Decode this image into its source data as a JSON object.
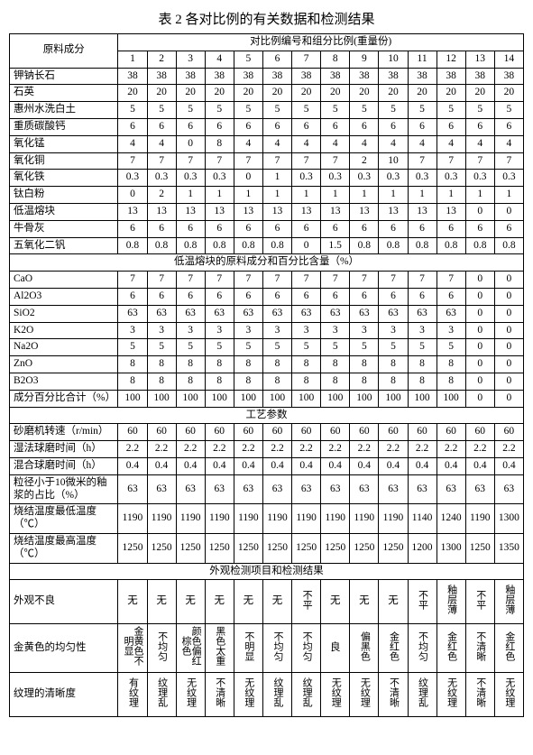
{
  "title": "表 2  各对比例的有关数据和检测结果",
  "header": {
    "rowhead": "原料成分",
    "colgroup": "对比例编号和组分比例(重量份)",
    "cols": [
      "1",
      "2",
      "3",
      "4",
      "5",
      "6",
      "7",
      "8",
      "9",
      "10",
      "11",
      "12",
      "13",
      "14"
    ]
  },
  "sections": {
    "s1_rows": [
      {
        "label": "钾钠长石",
        "v": [
          "38",
          "38",
          "38",
          "38",
          "38",
          "38",
          "38",
          "38",
          "38",
          "38",
          "38",
          "38",
          "38",
          "38"
        ]
      },
      {
        "label": "石英",
        "v": [
          "20",
          "20",
          "20",
          "20",
          "20",
          "20",
          "20",
          "20",
          "20",
          "20",
          "20",
          "20",
          "20",
          "20"
        ]
      },
      {
        "label": "惠州水洗白土",
        "v": [
          "5",
          "5",
          "5",
          "5",
          "5",
          "5",
          "5",
          "5",
          "5",
          "5",
          "5",
          "5",
          "5",
          "5"
        ]
      },
      {
        "label": "重质碳酸钙",
        "v": [
          "6",
          "6",
          "6",
          "6",
          "6",
          "6",
          "6",
          "6",
          "6",
          "6",
          "6",
          "6",
          "6",
          "6"
        ]
      },
      {
        "label": "氧化锰",
        "v": [
          "4",
          "4",
          "0",
          "8",
          "4",
          "4",
          "4",
          "4",
          "4",
          "4",
          "4",
          "4",
          "4",
          "4"
        ]
      },
      {
        "label": "氧化铜",
        "v": [
          "7",
          "7",
          "7",
          "7",
          "7",
          "7",
          "7",
          "7",
          "2",
          "10",
          "7",
          "7",
          "7",
          "7"
        ]
      },
      {
        "label": "氧化铁",
        "v": [
          "0.3",
          "0.3",
          "0.3",
          "0.3",
          "0",
          "1",
          "0.3",
          "0.3",
          "0.3",
          "0.3",
          "0.3",
          "0.3",
          "0.3",
          "0.3"
        ]
      },
      {
        "label": "钛白粉",
        "v": [
          "0",
          "2",
          "1",
          "1",
          "1",
          "1",
          "1",
          "1",
          "1",
          "1",
          "1",
          "1",
          "1",
          "1"
        ]
      },
      {
        "label": "低温熔块",
        "v": [
          "13",
          "13",
          "13",
          "13",
          "13",
          "13",
          "13",
          "13",
          "13",
          "13",
          "13",
          "13",
          "0",
          "0"
        ]
      },
      {
        "label": "牛骨灰",
        "v": [
          "6",
          "6",
          "6",
          "6",
          "6",
          "6",
          "6",
          "6",
          "6",
          "6",
          "6",
          "6",
          "6",
          "6"
        ]
      },
      {
        "label": "五氧化二钒",
        "v": [
          "0.8",
          "0.8",
          "0.8",
          "0.8",
          "0.8",
          "0.8",
          "0",
          "1.5",
          "0.8",
          "0.8",
          "0.8",
          "0.8",
          "0.8",
          "0.8"
        ]
      }
    ],
    "s2_title": "低温熔块的原料成分和百分比含量（%）",
    "s2_rows": [
      {
        "label": "CaO",
        "v": [
          "7",
          "7",
          "7",
          "7",
          "7",
          "7",
          "7",
          "7",
          "7",
          "7",
          "7",
          "7",
          "0",
          "0"
        ]
      },
      {
        "label": "Al2O3",
        "v": [
          "6",
          "6",
          "6",
          "6",
          "6",
          "6",
          "6",
          "6",
          "6",
          "6",
          "6",
          "6",
          "0",
          "0"
        ]
      },
      {
        "label": "SiO2",
        "v": [
          "63",
          "63",
          "63",
          "63",
          "63",
          "63",
          "63",
          "63",
          "63",
          "63",
          "63",
          "63",
          "0",
          "0"
        ]
      },
      {
        "label": "K2O",
        "v": [
          "3",
          "3",
          "3",
          "3",
          "3",
          "3",
          "3",
          "3",
          "3",
          "3",
          "3",
          "3",
          "0",
          "0"
        ]
      },
      {
        "label": "Na2O",
        "v": [
          "5",
          "5",
          "5",
          "5",
          "5",
          "5",
          "5",
          "5",
          "5",
          "5",
          "5",
          "5",
          "0",
          "0"
        ]
      },
      {
        "label": "ZnO",
        "v": [
          "8",
          "8",
          "8",
          "8",
          "8",
          "8",
          "8",
          "8",
          "8",
          "8",
          "8",
          "8",
          "0",
          "0"
        ]
      },
      {
        "label": "B2O3",
        "v": [
          "8",
          "8",
          "8",
          "8",
          "8",
          "8",
          "8",
          "8",
          "8",
          "8",
          "8",
          "8",
          "0",
          "0"
        ]
      },
      {
        "label": "成分百分比合计（%）",
        "v": [
          "100",
          "100",
          "100",
          "100",
          "100",
          "100",
          "100",
          "100",
          "100",
          "100",
          "100",
          "100",
          "0",
          "0"
        ]
      }
    ],
    "s3_title": "工艺参数",
    "s3_rows": [
      {
        "label": "砂磨机转速（r/min）",
        "v": [
          "60",
          "60",
          "60",
          "60",
          "60",
          "60",
          "60",
          "60",
          "60",
          "60",
          "60",
          "60",
          "60",
          "60"
        ]
      },
      {
        "label": "湿法球磨时间（h）",
        "v": [
          "2.2",
          "2.2",
          "2.2",
          "2.2",
          "2.2",
          "2.2",
          "2.2",
          "2.2",
          "2.2",
          "2.2",
          "2.2",
          "2.2",
          "2.2",
          "2.2"
        ]
      },
      {
        "label": "混合球磨时间（h）",
        "v": [
          "0.4",
          "0.4",
          "0.4",
          "0.4",
          "0.4",
          "0.4",
          "0.4",
          "0.4",
          "0.4",
          "0.4",
          "0.4",
          "0.4",
          "0.4",
          "0.4"
        ]
      },
      {
        "label": "粒径小于10微米的釉浆的占比（%）",
        "v": [
          "63",
          "63",
          "63",
          "63",
          "63",
          "63",
          "63",
          "63",
          "63",
          "63",
          "63",
          "63",
          "63",
          "63"
        ]
      },
      {
        "label": "烧结温度最低温度（℃）",
        "v": [
          "1190",
          "1190",
          "1190",
          "1190",
          "1190",
          "1190",
          "1190",
          "1190",
          "1190",
          "1190",
          "1140",
          "1240",
          "1190",
          "1300"
        ]
      },
      {
        "label": "烧结温度最高温度（℃）",
        "v": [
          "1250",
          "1250",
          "1250",
          "1250",
          "1250",
          "1250",
          "1250",
          "1250",
          "1250",
          "1250",
          "1200",
          "1300",
          "1250",
          "1350"
        ]
      }
    ],
    "s4_title": "外观检测项目和检测结果",
    "s4_rows": [
      {
        "label": "外观不良",
        "v": [
          "无",
          "无",
          "无",
          "无",
          "无",
          "无",
          "不平",
          "无",
          "无",
          "无",
          "不平",
          "釉层薄",
          "不平",
          "釉层薄"
        ]
      },
      {
        "label": "金黄色的均匀性",
        "v": [
          "金黄色不明显",
          "不均匀",
          "颜色偏红棕色",
          "黑色太重",
          "不明显",
          "不均匀",
          "不均匀",
          "良",
          "偏黑色",
          "金红色",
          "不均匀",
          "金红色",
          "不清晰",
          "金红色"
        ]
      },
      {
        "label": "纹理的清晰度",
        "v": [
          "有纹理",
          "纹理乱",
          "无纹理",
          "不清晰",
          "无纹理",
          "纹理乱",
          "纹理乱",
          "无纹理",
          "无纹理",
          "不清晰",
          "纹理乱",
          "无纹理",
          "不清晰",
          "无纹理"
        ]
      }
    ]
  }
}
